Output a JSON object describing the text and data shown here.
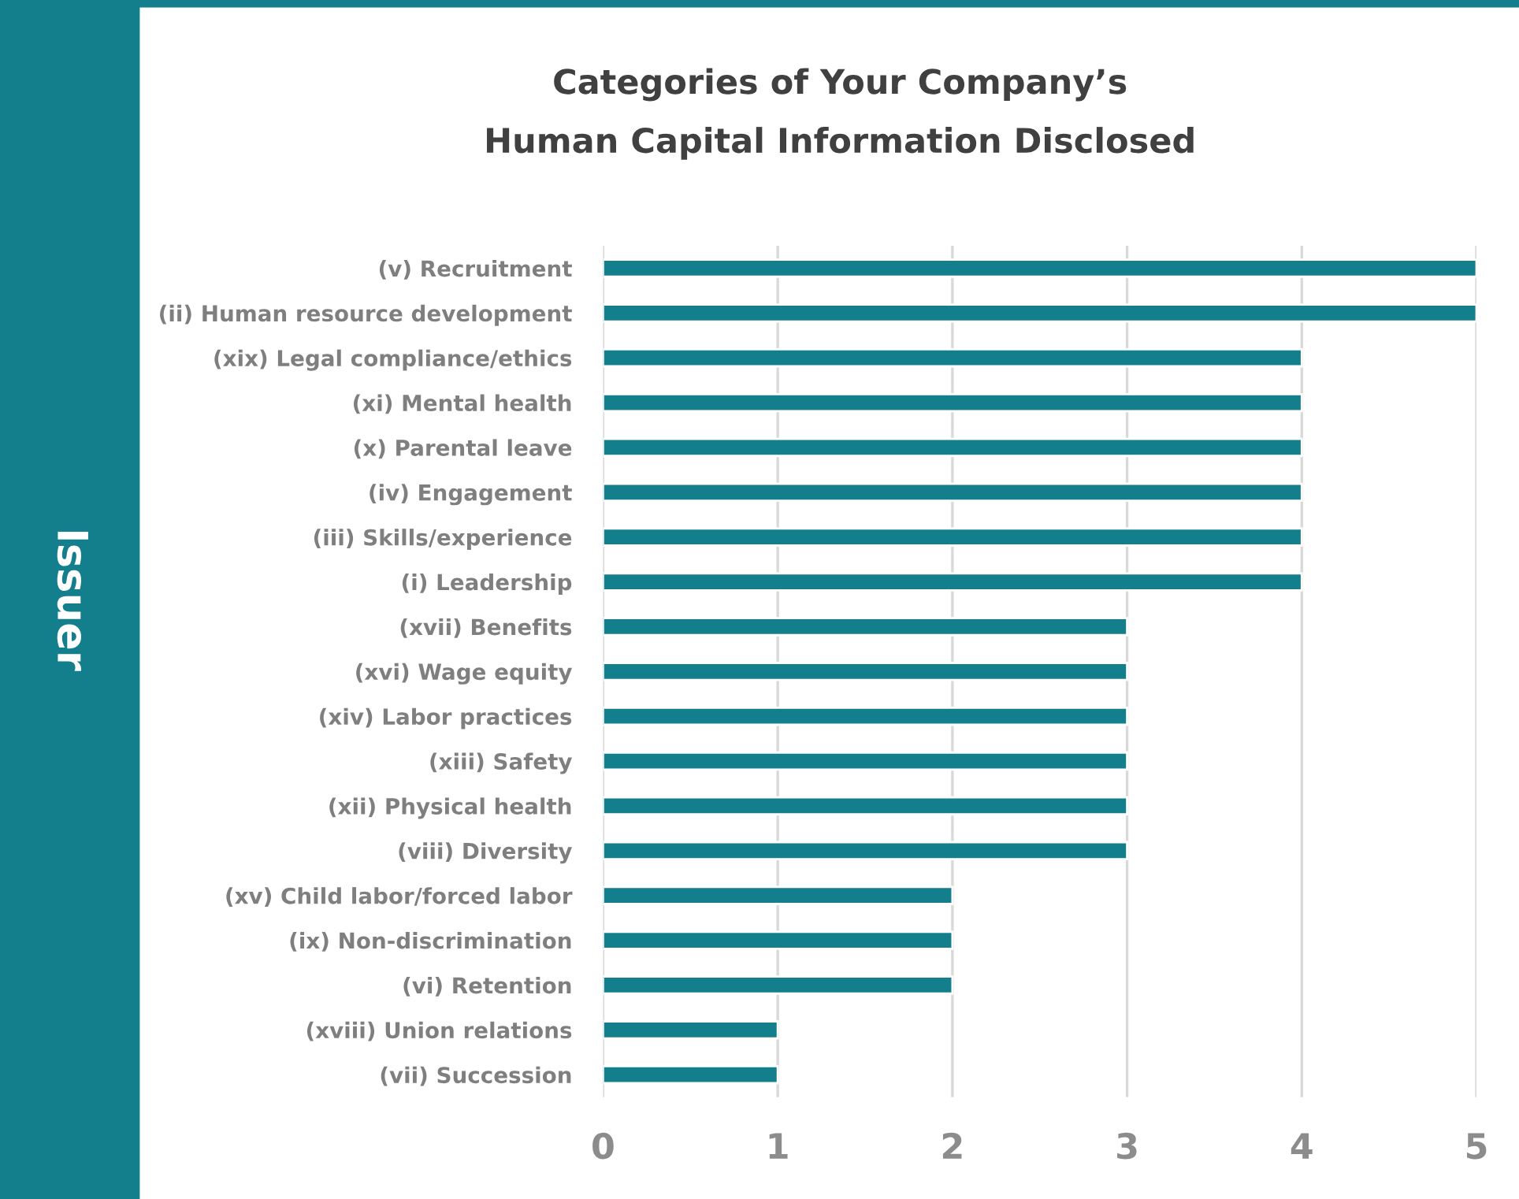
{
  "chart_data": {
    "type": "bar",
    "orientation": "horizontal",
    "title": "Categories of Your Company’s\nHuman Capital Information Disclosed",
    "ylabel": "Issuer",
    "categories": [
      "(v) Recruitment",
      "(ii) Human resource development",
      "(xix) Legal compliance/ethics",
      "(xi) Mental health",
      "(x) Parental leave",
      "(iv) Engagement",
      "(iii) Skills/experience",
      "(i) Leadership",
      "(xvii) Benefits",
      "(xvi) Wage equity",
      "(xiv) Labor practices",
      "(xiii) Safety",
      "(xii) Physical health",
      "(viii) Diversity",
      "(xv) Child labor/forced labor",
      "(ix) Non-discrimination",
      "(vi) Retention",
      "(xviii) Union relations",
      "(vii) Succession"
    ],
    "values": [
      5,
      5,
      4,
      4,
      4,
      4,
      4,
      4,
      3,
      3,
      3,
      3,
      3,
      3,
      2,
      2,
      2,
      1,
      1
    ],
    "color": "#137e8c",
    "xlim": [
      0,
      5
    ],
    "xticks": [
      0,
      1,
      2,
      3,
      4,
      5
    ],
    "grid": "x",
    "legend": false
  }
}
